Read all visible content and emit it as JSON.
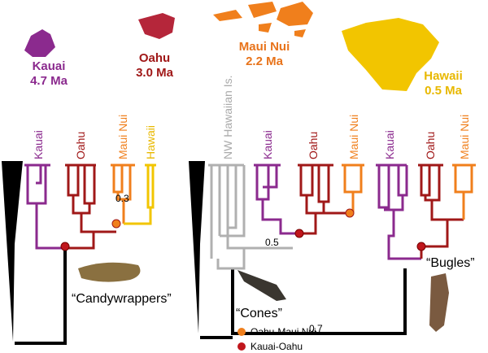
{
  "islands": [
    {
      "name": "Kauai",
      "age": "4.7 Ma"
    },
    {
      "name": "Oahu",
      "age": "3.0 Ma"
    },
    {
      "name": "Maui Nui",
      "age": "2.2 Ma"
    },
    {
      "name": "Hawaii",
      "age": "0.5 Ma"
    }
  ],
  "trees": [
    {
      "tips": [
        "Kauai",
        "Oahu",
        "Maui Nui",
        "Hawaii"
      ],
      "node_label": "0.3",
      "group": "“Candywrappers”"
    },
    {
      "tips": [
        "NW Hawaiian Is.",
        "Kauai",
        "Oahu",
        "Maui Nui"
      ],
      "node_label": "0.5",
      "group": "“Cones”",
      "root_label": "0.7"
    },
    {
      "tips": [
        "Kauai",
        "Oahu",
        "Maui Nui"
      ],
      "group": "“Bugles”"
    }
  ],
  "legend": [
    "Oahu-Maui Nui",
    "Kauai-Oahu"
  ]
}
